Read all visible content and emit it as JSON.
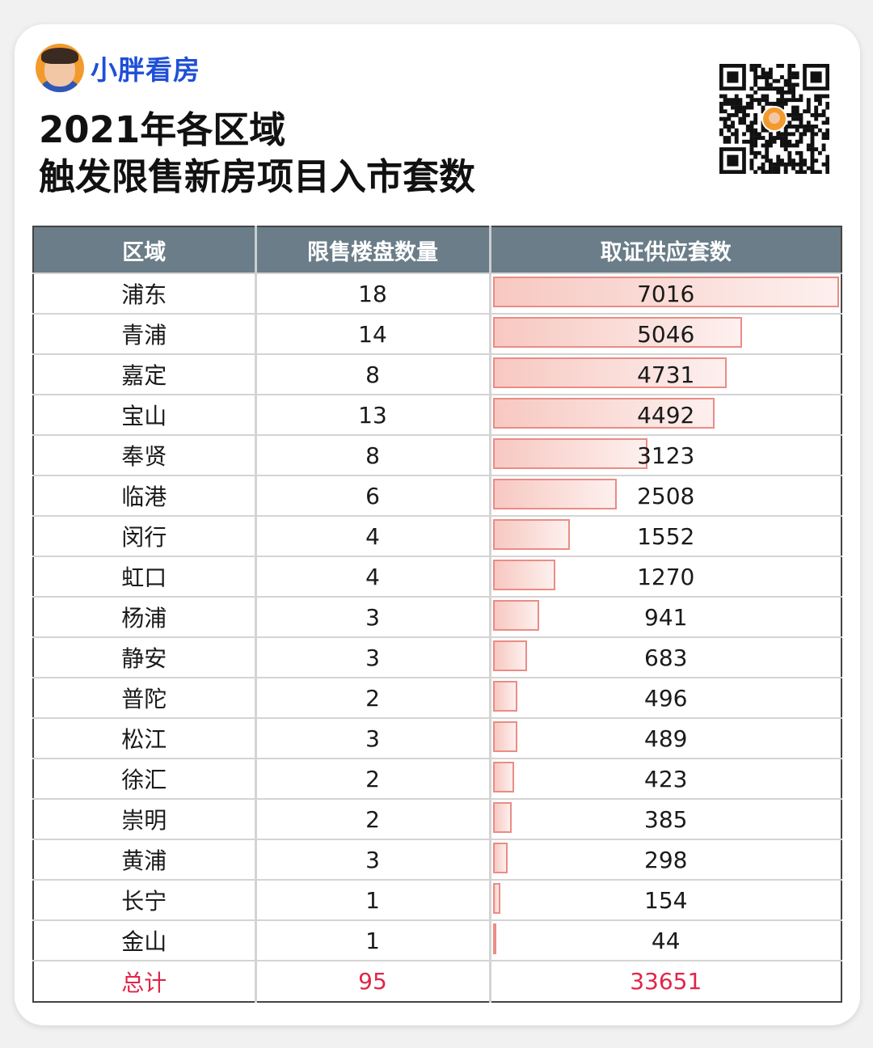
{
  "brand": {
    "name": "小胖看房"
  },
  "title": {
    "line1": "2021年各区域",
    "line2": "触发限售新房项目入市套数"
  },
  "table": {
    "headers": [
      "区域",
      "限售楼盘数量",
      "取证供应套数"
    ],
    "total": {
      "label": "总计",
      "projects": "95",
      "units": "33651"
    }
  },
  "colors": {
    "header_bg": "#6a7d88",
    "bar_border": "#ea8c85",
    "bar_fill": "#f7c8c1",
    "total_text": "#e0264a",
    "brand_text": "#1f4fd6"
  },
  "chart_data": {
    "type": "table",
    "columns": [
      "区域",
      "限售楼盘数量",
      "取证供应套数"
    ],
    "rows": [
      [
        "浦东",
        18,
        7016
      ],
      [
        "青浦",
        14,
        5046
      ],
      [
        "嘉定",
        8,
        4731
      ],
      [
        "宝山",
        13,
        4492
      ],
      [
        "奉贤",
        8,
        3123
      ],
      [
        "临港",
        6,
        2508
      ],
      [
        "闵行",
        4,
        1552
      ],
      [
        "虹口",
        4,
        1270
      ],
      [
        "杨浦",
        3,
        941
      ],
      [
        "静安",
        3,
        683
      ],
      [
        "普陀",
        2,
        496
      ],
      [
        "松江",
        3,
        489
      ],
      [
        "徐汇",
        2,
        423
      ],
      [
        "崇明",
        2,
        385
      ],
      [
        "黄浦",
        3,
        298
      ],
      [
        "长宁",
        1,
        154
      ],
      [
        "金山",
        1,
        44
      ]
    ]
  }
}
